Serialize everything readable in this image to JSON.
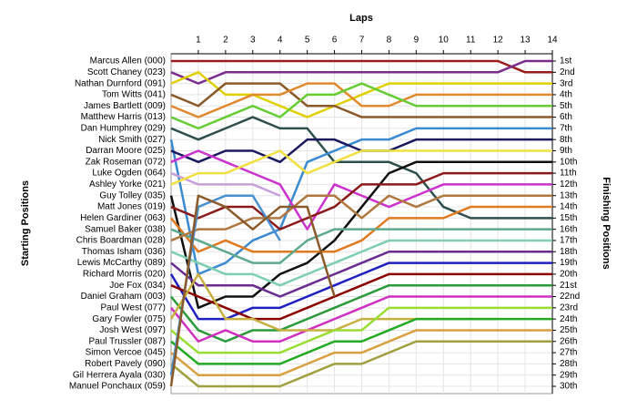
{
  "chart_data": {
    "type": "line",
    "title": "Laps",
    "y_label": "Starting Positions",
    "y2_label": "Finishing Positions",
    "x": [
      0,
      1,
      2,
      3,
      4,
      5,
      6,
      7,
      8,
      9,
      10,
      11,
      12,
      13,
      14
    ],
    "xlim": [
      0,
      14
    ],
    "xticks": [
      1,
      2,
      3,
      4,
      5,
      6,
      7,
      8,
      9,
      10,
      11,
      12,
      13,
      14
    ],
    "ylim": [
      1,
      30
    ],
    "inverted": true,
    "grid": true,
    "y2ticks": [
      {
        "value": 1,
        "label": "1st"
      },
      {
        "value": 2,
        "label": "2nd"
      },
      {
        "value": 3,
        "label": "3rd"
      },
      {
        "value": 4,
        "label": "4th"
      },
      {
        "value": 5,
        "label": "5th"
      },
      {
        "value": 6,
        "label": "6th"
      },
      {
        "value": 7,
        "label": "7th"
      },
      {
        "value": 8,
        "label": "8th"
      },
      {
        "value": 9,
        "label": "9th"
      },
      {
        "value": 10,
        "label": "10th"
      },
      {
        "value": 11,
        "label": "11th"
      },
      {
        "value": 12,
        "label": "12th"
      },
      {
        "value": 13,
        "label": "13th"
      },
      {
        "value": 14,
        "label": "14th"
      },
      {
        "value": 15,
        "label": "15th"
      },
      {
        "value": 16,
        "label": "16th"
      },
      {
        "value": 17,
        "label": "17th"
      },
      {
        "value": 18,
        "label": "18th"
      },
      {
        "value": 19,
        "label": "19th"
      },
      {
        "value": 20,
        "label": "20th"
      },
      {
        "value": 21,
        "label": "21st"
      },
      {
        "value": 22,
        "label": "22nd"
      },
      {
        "value": 23,
        "label": "23rd"
      },
      {
        "value": 24,
        "label": "24th"
      },
      {
        "value": 25,
        "label": "25th"
      },
      {
        "value": 26,
        "label": "26th"
      },
      {
        "value": 27,
        "label": "27th"
      },
      {
        "value": 28,
        "label": "28th"
      },
      {
        "value": 29,
        "label": "29th"
      },
      {
        "value": 30,
        "label": "30th"
      }
    ],
    "series": [
      {
        "name": "Marcus Allen (000)",
        "color": "#9b1c1c",
        "values": [
          1,
          1,
          1,
          1,
          1,
          1,
          1,
          1,
          1,
          1,
          1,
          1,
          1,
          2,
          2
        ]
      },
      {
        "name": "Scott Chaney (023)",
        "color": "#7b2d8e",
        "values": [
          2,
          3,
          2,
          2,
          2,
          2,
          2,
          2,
          2,
          2,
          2,
          2,
          2,
          1,
          1
        ]
      },
      {
        "name": "Nathan Durnford (091)",
        "color": "#e0d000",
        "values": [
          3,
          2,
          4,
          4,
          5,
          6,
          5,
          4,
          3,
          3,
          3,
          3,
          3,
          3,
          3
        ]
      },
      {
        "name": "Tom Witts (041)",
        "color": "#8b5a2b",
        "values": [
          4,
          5,
          3,
          3,
          3,
          5,
          5,
          6,
          6,
          6,
          6,
          6,
          6,
          6,
          6
        ]
      },
      {
        "name": "James Bartlett (009)",
        "color": "#e08a30",
        "values": [
          5,
          6,
          5,
          4,
          4,
          3,
          3,
          5,
          5,
          4,
          4,
          4,
          4,
          4,
          4
        ]
      },
      {
        "name": "Matthew Harris (013)",
        "color": "#66cc33",
        "values": [
          6,
          7,
          6,
          5,
          6,
          4,
          4,
          3,
          4,
          5,
          5,
          5,
          5,
          5,
          5
        ]
      },
      {
        "name": "Dan Humphrey (029)",
        "color": "#2f4f4f",
        "values": [
          7,
          8,
          7,
          6,
          7,
          7,
          10,
          10,
          10,
          11,
          14,
          15,
          15,
          15,
          15
        ]
      },
      {
        "name": "Nick Smith (027)",
        "color": "#3a8ad0",
        "values": [
          8,
          20,
          19,
          17,
          16,
          10,
          9,
          8,
          8,
          7,
          7,
          7,
          7,
          7,
          7
        ]
      },
      {
        "name": "Darran Moore (025)",
        "color": "#1a1a5e",
        "values": [
          9,
          10,
          9,
          9,
          10,
          8,
          8,
          9,
          9,
          8,
          8,
          8,
          8,
          8,
          8
        ]
      },
      {
        "name": "Zak Roseman (072)",
        "color": "#cc33cc",
        "values": [
          10,
          9,
          10,
          11,
          12,
          16,
          12,
          13,
          14,
          13,
          12,
          12,
          12,
          12,
          12
        ]
      },
      {
        "name": "Luke Ogden (064)",
        "color": "#c8a0d8",
        "values": [
          11,
          12,
          12,
          12,
          13,
          null,
          null,
          null,
          null,
          null,
          null,
          null,
          null,
          null,
          null
        ]
      },
      {
        "name": "Ashley Yorke (021)",
        "color": "#f0e040",
        "values": [
          12,
          11,
          11,
          10,
          9,
          11,
          10,
          9,
          9,
          9,
          9,
          9,
          9,
          9,
          9
        ]
      },
      {
        "name": "Guy Tolley (035)",
        "color": "#111111",
        "values": [
          13,
          23,
          22,
          22,
          20,
          19,
          17,
          14,
          11,
          10,
          10,
          10,
          10,
          10,
          10
        ]
      },
      {
        "name": "Matt Jones (019)",
        "color": "#8b1a1a",
        "values": [
          14,
          15,
          14,
          14,
          16,
          15,
          14,
          12,
          12,
          12,
          11,
          11,
          11,
          11,
          11
        ]
      },
      {
        "name": "Helen Gardiner (063)",
        "color": "#e07a20",
        "values": [
          15,
          18,
          17,
          18,
          18,
          18,
          18,
          17,
          15,
          15,
          15,
          14,
          14,
          14,
          14
        ]
      },
      {
        "name": "Samuel Baker (038)",
        "color": "#5fa890",
        "values": [
          16,
          17,
          18,
          19,
          19,
          17,
          16,
          16,
          16,
          16,
          16,
          16,
          16,
          16,
          16
        ]
      },
      {
        "name": "Chris Boardman (028)",
        "color": "#b07840",
        "values": [
          17,
          16,
          16,
          15,
          15,
          13,
          13,
          15,
          13,
          14,
          13,
          13,
          13,
          13,
          13
        ]
      },
      {
        "name": "Thomas Isham (036)",
        "color": "#7dcfb0",
        "values": [
          18,
          19,
          20,
          20,
          21,
          20,
          19,
          18,
          17,
          17,
          17,
          17,
          17,
          17,
          17
        ]
      },
      {
        "name": "Lewis McCarthy (089)",
        "color": "#6a2c91",
        "values": [
          19,
          21,
          21,
          21,
          22,
          21,
          20,
          19,
          18,
          18,
          18,
          18,
          18,
          18,
          18
        ]
      },
      {
        "name": "Richard Morris (020)",
        "color": "#2020c0",
        "values": [
          20,
          24,
          24,
          23,
          23,
          22,
          21,
          20,
          19,
          19,
          19,
          19,
          19,
          19,
          19
        ]
      },
      {
        "name": "Joe Fox (034)",
        "color": "#8b0000",
        "values": [
          21,
          22,
          23,
          24,
          24,
          23,
          22,
          21,
          20,
          20,
          20,
          20,
          20,
          20,
          20
        ]
      },
      {
        "name": "Daniel Graham (003)",
        "color": "#2a9a3a",
        "values": [
          22,
          25,
          26,
          25,
          25,
          24,
          23,
          22,
          21,
          21,
          21,
          21,
          21,
          21,
          21
        ]
      },
      {
        "name": "Paul West (077)",
        "color": "#d030c0",
        "values": [
          23,
          26,
          25,
          26,
          26,
          25,
          24,
          23,
          22,
          22,
          22,
          22,
          22,
          22,
          22
        ]
      },
      {
        "name": "Gary Fowler (075)",
        "color": "#c8b040",
        "values": [
          24,
          20,
          24,
          24,
          25,
          25,
          25,
          24,
          24,
          24,
          24,
          24,
          24,
          null,
          null
        ]
      },
      {
        "name": "Josh West (097)",
        "color": "#99dd33",
        "values": [
          25,
          27,
          27,
          27,
          27,
          26,
          25,
          25,
          23,
          23,
          23,
          23,
          23,
          23,
          23
        ]
      },
      {
        "name": "Paul Trussler (087)",
        "color": "#22aa22",
        "values": [
          26,
          28,
          28,
          28,
          28,
          27,
          26,
          26,
          25,
          24,
          24,
          24,
          24,
          24,
          24
        ]
      },
      {
        "name": "Simon Vercoe (045)",
        "color": "#d8a040",
        "values": [
          27,
          29,
          29,
          29,
          29,
          28,
          27,
          27,
          26,
          25,
          25,
          25,
          25,
          25,
          25
        ]
      },
      {
        "name": "Robert Pavely (090)",
        "color": "#a0a040",
        "values": [
          28,
          30,
          30,
          30,
          30,
          29,
          28,
          28,
          27,
          26,
          26,
          26,
          26,
          26,
          26
        ]
      },
      {
        "name": "Gil Herrera Ayala (030)",
        "color": "#4a90d0",
        "values": [
          29,
          14,
          13,
          13,
          17,
          null,
          null,
          null,
          null,
          null,
          null,
          null,
          null,
          null,
          null
        ]
      },
      {
        "name": "Manuel Ponchaux (059)",
        "color": "#8b5a2b",
        "values": [
          30,
          13,
          14,
          16,
          14,
          14,
          22,
          null,
          null,
          null,
          null,
          null,
          null,
          null,
          null
        ]
      }
    ]
  }
}
